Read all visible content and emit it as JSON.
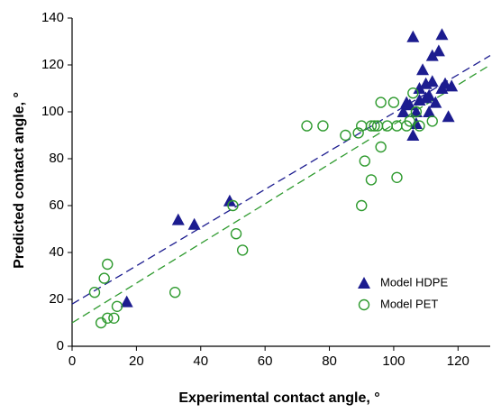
{
  "chart_data": {
    "type": "scatter",
    "x_label": "Experimental contact angle, °",
    "y_label": "Predicted contact angle, °",
    "xlim": [
      0,
      130
    ],
    "xticks": [
      0,
      20,
      40,
      60,
      80,
      100,
      120
    ],
    "ylim": [
      0,
      140
    ],
    "yticks": [
      0,
      20,
      40,
      60,
      80,
      100,
      120,
      140
    ],
    "legend": "lower right",
    "series": [
      {
        "name": "Model HDPE",
        "color": "#1c1c8f",
        "marker": "triangle",
        "x": [
          17,
          33,
          38,
          49,
          103,
          104,
          105,
          106,
          106,
          107,
          107,
          108,
          108,
          109,
          110,
          110,
          111,
          111,
          112,
          112,
          113,
          114,
          115,
          115,
          116,
          117,
          118
        ],
        "values": [
          19,
          54,
          52,
          62,
          100,
          104,
          103,
          132,
          90,
          95,
          100,
          105,
          110,
          118,
          112,
          106,
          100,
          107,
          124,
          113,
          104,
          126,
          133,
          110,
          112,
          98,
          111
        ]
      },
      {
        "name": "Model PET",
        "color": "#2e9a2e",
        "marker": "circle",
        "x": [
          7,
          9,
          10,
          11,
          11,
          13,
          14,
          32,
          50,
          51,
          53,
          73,
          78,
          85,
          89,
          90,
          90,
          91,
          93,
          93,
          94,
          95,
          96,
          96,
          98,
          100,
          101,
          101,
          104,
          105,
          106,
          107,
          108,
          112
        ],
        "values": [
          23,
          10,
          29,
          35,
          12,
          12,
          17,
          23,
          60,
          48,
          41,
          94,
          94,
          90,
          91,
          60,
          94,
          79,
          94,
          71,
          94,
          94,
          85,
          104,
          94,
          104,
          72,
          94,
          94,
          96,
          108,
          100,
          94,
          96
        ]
      }
    ],
    "trend_lines": [
      {
        "color": "#1c1c8f",
        "x": [
          0,
          130
        ],
        "values": [
          18,
          124
        ]
      },
      {
        "color": "#2e9a2e",
        "x": [
          0,
          130
        ],
        "values": [
          10,
          120
        ]
      }
    ]
  }
}
